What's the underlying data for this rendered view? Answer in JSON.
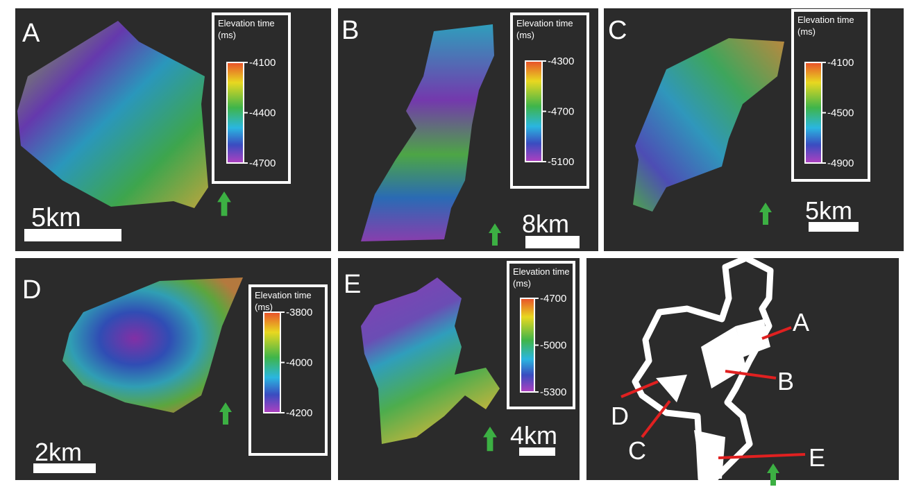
{
  "panels": [
    {
      "label": "A",
      "legend_title": "Elevation time",
      "legend_unit": "(ms)",
      "ticks": [
        "-4100",
        "-4400",
        "-4700"
      ],
      "scale": "5km"
    },
    {
      "label": "B",
      "legend_title": "Elevation time",
      "legend_unit": "(ms)",
      "ticks": [
        "-4300",
        "-4700",
        "-5100"
      ],
      "scale": "8km"
    },
    {
      "label": "C",
      "legend_title": "Elevation time",
      "legend_unit": "(ms)",
      "ticks": [
        "-4100",
        "-4500",
        "-4900"
      ],
      "scale": "5km"
    },
    {
      "label": "D",
      "legend_title": "Elevation time",
      "legend_unit": "(ms)",
      "ticks": [
        "-3800",
        "-4000",
        "-4200"
      ],
      "scale": "2km"
    },
    {
      "label": "E",
      "legend_title": "Elevation time",
      "legend_unit": "(ms)",
      "ticks": [
        "-4700",
        "-5000",
        "-5300"
      ],
      "scale": "4km"
    }
  ],
  "overview": {
    "labels": [
      "A",
      "B",
      "C",
      "D",
      "E"
    ]
  }
}
